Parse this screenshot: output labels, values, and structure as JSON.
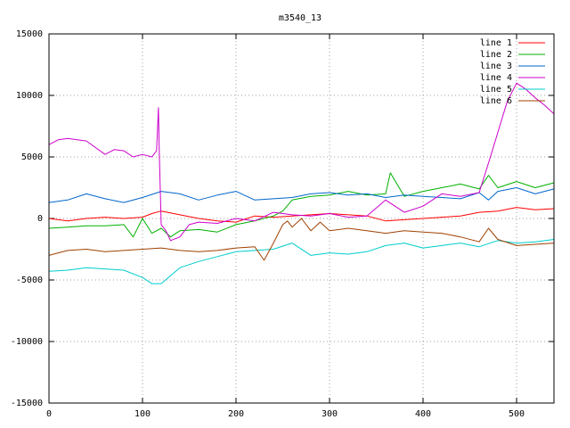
{
  "chart_data": {
    "type": "line",
    "title": "m3540_13",
    "xlabel": "",
    "ylabel": "",
    "xlim": [
      0,
      540
    ],
    "ylim": [
      -15000,
      15000
    ],
    "xticks": [
      0,
      100,
      200,
      300,
      400,
      500
    ],
    "yticks": [
      -15000,
      -10000,
      -5000,
      0,
      5000,
      10000,
      15000
    ],
    "grid": true,
    "legend_position": "top-right",
    "series": [
      {
        "name": "line 1",
        "color": "#ff0000",
        "x": [
          0,
          20,
          40,
          60,
          80,
          100,
          110,
          120,
          140,
          160,
          180,
          200,
          220,
          240,
          260,
          280,
          300,
          320,
          340,
          360,
          380,
          400,
          420,
          440,
          460,
          480,
          500,
          520,
          540
        ],
        "y": [
          0,
          -200,
          0,
          100,
          0,
          100,
          400,
          600,
          300,
          0,
          -200,
          -300,
          200,
          100,
          200,
          300,
          400,
          300,
          200,
          -200,
          -100,
          0,
          100,
          200,
          500,
          600,
          900,
          700,
          800
        ]
      },
      {
        "name": "line 2",
        "color": "#00b000",
        "x": [
          0,
          20,
          40,
          60,
          80,
          90,
          100,
          110,
          120,
          130,
          140,
          160,
          180,
          200,
          220,
          240,
          250,
          260,
          280,
          300,
          320,
          340,
          360,
          365,
          380,
          400,
          420,
          440,
          460,
          470,
          480,
          500,
          520,
          540
        ],
        "y": [
          -800,
          -700,
          -600,
          -600,
          -500,
          -1500,
          0,
          -1200,
          -800,
          -1500,
          -1000,
          -900,
          -1100,
          -500,
          -200,
          200,
          600,
          1500,
          1800,
          1900,
          2200,
          1900,
          2000,
          3700,
          1800,
          2200,
          2500,
          2800,
          2400,
          3500,
          2500,
          3000,
          2500,
          2900
        ]
      },
      {
        "name": "line 3",
        "color": "#0066cc",
        "x": [
          0,
          20,
          40,
          60,
          80,
          100,
          120,
          140,
          160,
          180,
          200,
          220,
          240,
          260,
          280,
          300,
          320,
          340,
          360,
          380,
          400,
          420,
          440,
          460,
          470,
          480,
          500,
          520,
          540
        ],
        "y": [
          1300,
          1500,
          2000,
          1600,
          1300,
          1700,
          2200,
          2000,
          1500,
          1900,
          2200,
          1500,
          1600,
          1700,
          2000,
          2100,
          1900,
          2000,
          1700,
          1900,
          1800,
          1700,
          1600,
          2100,
          1500,
          2200,
          2500,
          2000,
          2400
        ]
      },
      {
        "name": "line 4",
        "color": "#cc00cc",
        "x": [
          0,
          10,
          20,
          40,
          60,
          70,
          80,
          90,
          100,
          110,
          115,
          117,
          118,
          120,
          125,
          130,
          140,
          150,
          160,
          180,
          200,
          220,
          240,
          260,
          280,
          300,
          320,
          340,
          360,
          380,
          400,
          420,
          440,
          460,
          470,
          480,
          490,
          500,
          510,
          520,
          530,
          540
        ],
        "y": [
          6000,
          6400,
          6500,
          6300,
          5200,
          5600,
          5500,
          5000,
          5200,
          5000,
          5500,
          9000,
          5200,
          -500,
          -1000,
          -1800,
          -1500,
          -500,
          -300,
          -400,
          0,
          -200,
          500,
          300,
          200,
          400,
          100,
          200,
          1500,
          500,
          1000,
          2000,
          1800,
          2100,
          4500,
          7000,
          9500,
          11000,
          10500,
          9800,
          9200,
          8500
        ]
      },
      {
        "name": "line 5",
        "color": "#00cccc",
        "x": [
          0,
          20,
          40,
          60,
          80,
          100,
          110,
          120,
          140,
          160,
          180,
          200,
          220,
          240,
          260,
          280,
          300,
          320,
          340,
          360,
          380,
          400,
          420,
          440,
          460,
          480,
          500,
          520,
          540
        ],
        "y": [
          -4300,
          -4200,
          -4000,
          -4100,
          -4200,
          -4800,
          -5300,
          -5300,
          -4000,
          -3500,
          -3100,
          -2700,
          -2600,
          -2500,
          -2000,
          -3000,
          -2800,
          -2900,
          -2700,
          -2200,
          -2000,
          -2400,
          -2200,
          -2000,
          -2300,
          -1800,
          -2000,
          -1900,
          -1700
        ]
      },
      {
        "name": "line 6",
        "color": "#a04000",
        "x": [
          0,
          20,
          40,
          60,
          80,
          100,
          120,
          140,
          160,
          180,
          200,
          220,
          230,
          240,
          250,
          255,
          260,
          270,
          280,
          290,
          300,
          320,
          340,
          360,
          380,
          400,
          420,
          440,
          460,
          470,
          480,
          500,
          520,
          540
        ],
        "y": [
          -3000,
          -2600,
          -2500,
          -2700,
          -2600,
          -2500,
          -2400,
          -2600,
          -2700,
          -2600,
          -2400,
          -2300,
          -3400,
          -2000,
          -500,
          -200,
          -700,
          0,
          -1000,
          -300,
          -1000,
          -800,
          -1000,
          -1200,
          -1000,
          -1100,
          -1200,
          -1500,
          -1900,
          -800,
          -1700,
          -2200,
          -2100,
          -2000
        ]
      }
    ]
  }
}
